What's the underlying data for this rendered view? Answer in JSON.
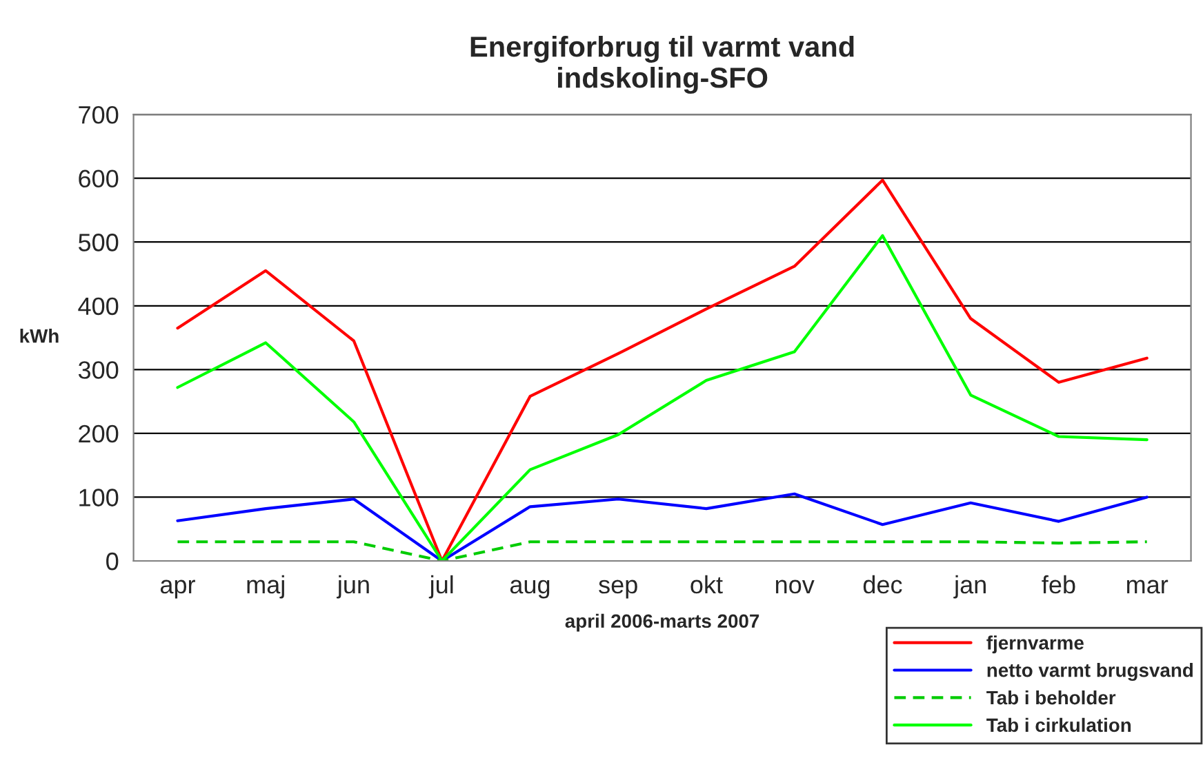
{
  "chart_data": {
    "type": "line",
    "title": "Energiforbrug til varmt vand\nindskoling-SFO",
    "xlabel": "april 2006-marts 2007",
    "ylabel": "kWh",
    "categories": [
      "apr",
      "maj",
      "jun",
      "jul",
      "aug",
      "sep",
      "okt",
      "nov",
      "dec",
      "jan",
      "feb",
      "mar"
    ],
    "series": [
      {
        "name": "fjernvarme",
        "color": "#ff0000",
        "values": [
          365,
          455,
          345,
          0,
          258,
          325,
          395,
          462,
          597,
          380,
          280,
          318
        ]
      },
      {
        "name": "netto varmt brugsvand",
        "color": "#0000ff",
        "values": [
          63,
          82,
          97,
          0,
          85,
          97,
          82,
          105,
          57,
          91,
          62,
          100
        ]
      },
      {
        "name": "Tab i beholder",
        "color": "#00cc00",
        "line_style": "dashed",
        "values": [
          30,
          30,
          30,
          0,
          30,
          30,
          30,
          30,
          30,
          30,
          28,
          30
        ]
      },
      {
        "name": "Tab i cirkulation",
        "color": "#00ff00",
        "values": [
          272,
          342,
          218,
          0,
          143,
          198,
          283,
          328,
          510,
          260,
          195,
          190
        ]
      }
    ],
    "ylim": [
      0,
      700
    ],
    "yticks": [
      0,
      100,
      200,
      300,
      400,
      500,
      600,
      700
    ],
    "grid": "y",
    "legend": "bottom right",
    "marker": "none",
    "line_style": "solid"
  }
}
